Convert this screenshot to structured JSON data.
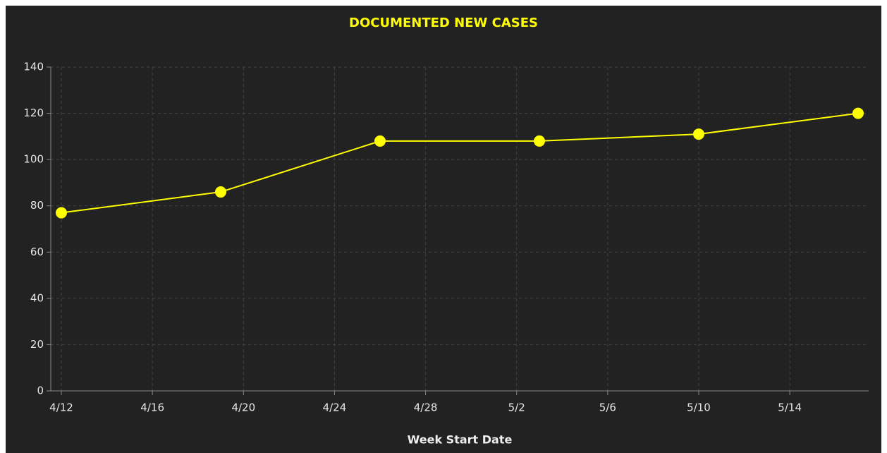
{
  "chart_data": {
    "type": "line",
    "title": "DOCUMENTED NEW CASES",
    "x_label": "Week Start Date",
    "x": [
      "4/12",
      "4/19",
      "4/26",
      "5/3",
      "5/10",
      "5/17"
    ],
    "series": [
      {
        "name": "Documented New Cases",
        "color": "#ffff00",
        "values": [
          77,
          86,
          108,
          108,
          111,
          120
        ]
      }
    ],
    "xlim": [
      "4/12",
      "5/17"
    ],
    "xticks": [
      "4/12",
      "4/16",
      "4/20",
      "4/24",
      "4/28",
      "5/2",
      "5/6",
      "5/10",
      "5/14"
    ],
    "ylim": [
      0,
      140
    ],
    "yticks": [
      0,
      20,
      40,
      60,
      80,
      100,
      120,
      140
    ],
    "grid": true
  }
}
